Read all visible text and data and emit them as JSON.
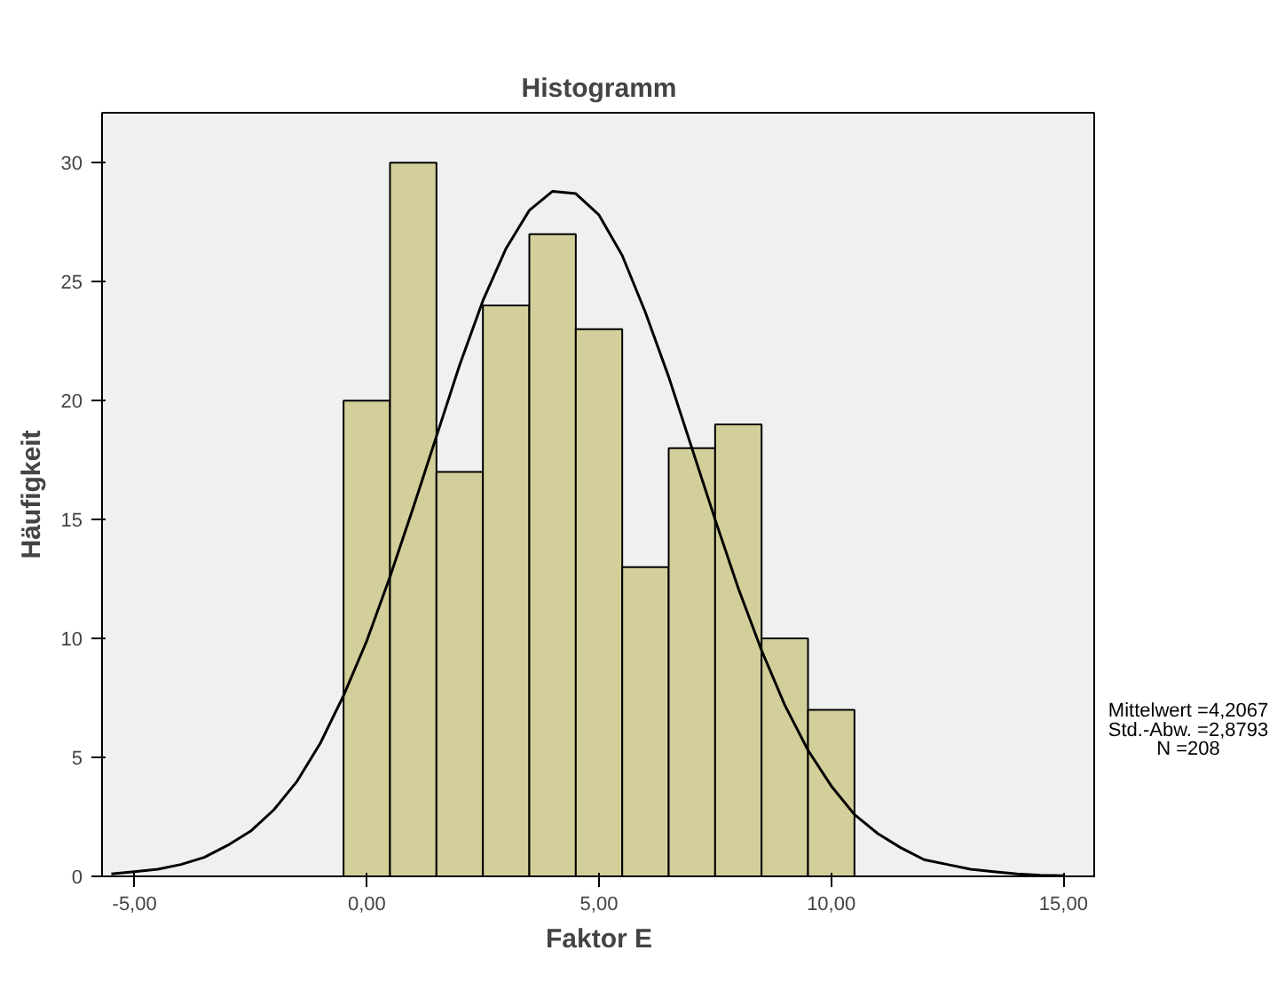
{
  "chart_data": {
    "type": "histogram",
    "title": "Histogramm",
    "xlabel": "Faktor E",
    "ylabel": "Häufigkeit",
    "bins": [
      -0.5,
      0.5,
      1.5,
      2.5,
      3.5,
      4.5,
      5.5,
      6.5,
      7.5,
      8.5,
      9.5,
      10.5
    ],
    "values": [
      20,
      30,
      17,
      24,
      27,
      23,
      13,
      18,
      19,
      10,
      7
    ],
    "color": "#d3cf9a",
    "series": [
      {
        "type": "line",
        "color": "#000000",
        "x": [
          -5.5,
          -5,
          -4.5,
          -4,
          -3.5,
          -3,
          -2.5,
          -2,
          -1.5,
          -1,
          -0.5,
          0,
          0.5,
          1,
          1.5,
          2,
          2.5,
          3,
          3.5,
          4,
          4.5,
          5,
          5.5,
          6,
          6.5,
          7,
          7.5,
          8,
          8.5,
          9,
          9.5,
          10,
          10.5,
          11,
          11.5,
          12,
          12.5,
          13,
          13.5,
          14,
          14.5,
          15
        ],
        "values": [
          0.1,
          0.2,
          0.3,
          0.5,
          0.8,
          1.3,
          1.9,
          2.8,
          4.0,
          5.6,
          7.6,
          9.9,
          12.6,
          15.5,
          18.5,
          21.5,
          24.2,
          26.4,
          28.0,
          28.8,
          28.7,
          27.8,
          26.1,
          23.7,
          21.0,
          18.0,
          15.0,
          12.1,
          9.5,
          7.2,
          5.3,
          3.8,
          2.6,
          1.8,
          1.2,
          0.7,
          0.5,
          0.3,
          0.2,
          0.1,
          0.05,
          0.03
        ]
      }
    ],
    "xlim": [
      -5.7,
      15.7
    ],
    "ylim": [
      0,
      32.1
    ],
    "xticks": [
      {
        "value": -5,
        "label": "-5,00"
      },
      {
        "value": 0,
        "label": "0,00"
      },
      {
        "value": 5,
        "label": "5,00"
      },
      {
        "value": 10,
        "label": "10,00"
      },
      {
        "value": 15,
        "label": "15,00"
      }
    ],
    "yticks": [
      0,
      5,
      10,
      15,
      20,
      25,
      30
    ],
    "grid": false,
    "legend": false,
    "annotations": [
      "Mittelwert =4,2067",
      "Std.-Abw. =2,8793",
      "N =208"
    ]
  }
}
